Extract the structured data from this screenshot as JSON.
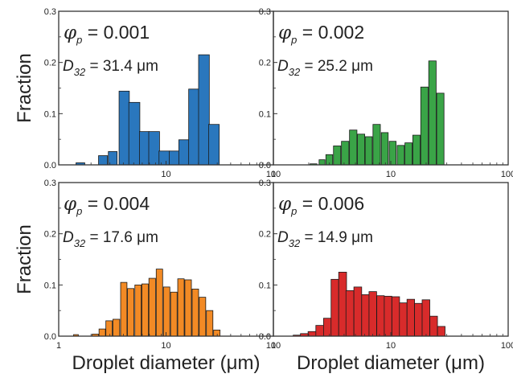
{
  "chart_data": [
    {
      "type": "bar",
      "panel": "top-left",
      "x_scale": "log",
      "xlim": [
        1,
        100
      ],
      "ylim": [
        0,
        0.3
      ],
      "x_ticks": [
        "10",
        "100"
      ],
      "y_ticks": [
        "0.0",
        "0.1",
        "0.2",
        "0.3"
      ],
      "ylabel": "Fraction",
      "xlabel": "",
      "phi_value": "0.001",
      "d32_value": "31.4 μm",
      "color": "#2a77bd",
      "x": [
        1.6,
        2.6,
        3.2,
        4.1,
        5.1,
        6.3,
        7.8,
        9.7,
        12.0,
        14.8,
        18.3,
        22.7,
        28.1,
        34.7,
        42.9
      ],
      "values": [
        0.004,
        0.018,
        0.026,
        0.144,
        0.122,
        0.065,
        0.065,
        0.027,
        0.027,
        0.049,
        0.148,
        0.215,
        0.079,
        0,
        0
      ],
      "bin_widths": [
        0.3,
        0.5,
        0.6,
        0.9,
        1.2,
        1.3,
        1.8,
        2.2,
        2.6,
        3.3,
        4.1,
        5.2,
        6.4,
        7.9,
        9.6
      ]
    },
    {
      "type": "bar",
      "panel": "top-right",
      "x_scale": "log",
      "xlim": [
        1,
        100
      ],
      "ylim": [
        0,
        0.3
      ],
      "x_ticks": [
        "1",
        "10",
        "100"
      ],
      "y_ticks": [
        "0.0",
        "0.1",
        "0.2",
        "0.3"
      ],
      "ylabel": "",
      "xlabel": "",
      "phi_value": "0.002",
      "d32_value": "25.2 μm",
      "color": "#3aa447",
      "x": [
        2.2,
        2.6,
        3.0,
        3.5,
        4.1,
        4.8,
        5.6,
        6.5,
        7.6,
        8.9,
        10.4,
        12.2,
        14.2,
        16.6,
        19.4,
        22.7,
        26.5,
        31.0
      ],
      "values": [
        0.002,
        0.01,
        0.02,
        0.037,
        0.046,
        0.068,
        0.06,
        0.055,
        0.079,
        0.063,
        0.046,
        0.038,
        0.043,
        0.058,
        0.152,
        0.203,
        0.14,
        0
      ],
      "bin_widths": [
        0.3,
        0.3,
        0.4,
        0.5,
        0.6,
        0.7,
        0.8,
        0.9,
        1.1,
        1.2,
        1.4,
        1.7,
        2.0,
        2.4,
        2.8,
        3.3,
        3.8,
        4.5
      ]
    },
    {
      "type": "bar",
      "panel": "bottom-left",
      "x_scale": "log",
      "xlim": [
        1,
        100
      ],
      "ylim": [
        0,
        0.3
      ],
      "x_ticks": [
        "1",
        "10",
        "100"
      ],
      "y_ticks": [
        "0.0",
        "0.1",
        "0.2",
        "0.3"
      ],
      "ylabel": "Fraction",
      "xlabel": "Droplet diameter (μm)",
      "phi_value": "0.004",
      "d32_value": "17.6 μm",
      "color": "#f28a25",
      "x": [
        1.45,
        2.2,
        2.55,
        2.95,
        3.45,
        4.05,
        4.7,
        5.5,
        6.4,
        7.45,
        8.7,
        10.15,
        11.85,
        13.8,
        16.1,
        18.8,
        21.9,
        25.55,
        29.8
      ],
      "values": [
        0.003,
        0.004,
        0.014,
        0.03,
        0.033,
        0.105,
        0.093,
        0.1,
        0.102,
        0.113,
        0.131,
        0.096,
        0.086,
        0.112,
        0.11,
        0.092,
        0.076,
        0.05,
        0.012
      ],
      "bin_widths": [
        0.15,
        0.3,
        0.35,
        0.4,
        0.5,
        0.55,
        0.65,
        0.75,
        0.9,
        1.05,
        1.2,
        1.4,
        1.65,
        1.9,
        2.25,
        2.6,
        3.05,
        3.55,
        4.1
      ]
    },
    {
      "type": "bar",
      "panel": "bottom-right",
      "x_scale": "log",
      "xlim": [
        1,
        100
      ],
      "ylim": [
        0,
        0.3
      ],
      "x_ticks": [
        "1",
        "10",
        "100"
      ],
      "y_ticks": [
        "0.0",
        "0.1",
        "0.2",
        "0.3"
      ],
      "ylabel": "",
      "xlabel": "Droplet diameter (μm)",
      "phi_value": "0.006",
      "d32_value": "14.9 μm",
      "color": "#d82b2b",
      "x": [
        1.6,
        1.85,
        2.15,
        2.5,
        2.9,
        3.35,
        3.9,
        4.5,
        5.25,
        6.1,
        7.05,
        8.2,
        9.5,
        11.05,
        12.8,
        14.85,
        17.25,
        20.0,
        23.25,
        27.0
      ],
      "values": [
        0.002,
        0.005,
        0.009,
        0.021,
        0.035,
        0.111,
        0.125,
        0.089,
        0.096,
        0.081,
        0.087,
        0.079,
        0.078,
        0.077,
        0.065,
        0.072,
        0.064,
        0.071,
        0.039,
        0.019
      ],
      "bin_widths": [
        0.25,
        0.3,
        0.35,
        0.4,
        0.45,
        0.5,
        0.6,
        0.7,
        0.8,
        0.9,
        1.05,
        1.2,
        1.4,
        1.65,
        1.9,
        2.2,
        2.6,
        3.0,
        3.45,
        4.0
      ]
    }
  ]
}
